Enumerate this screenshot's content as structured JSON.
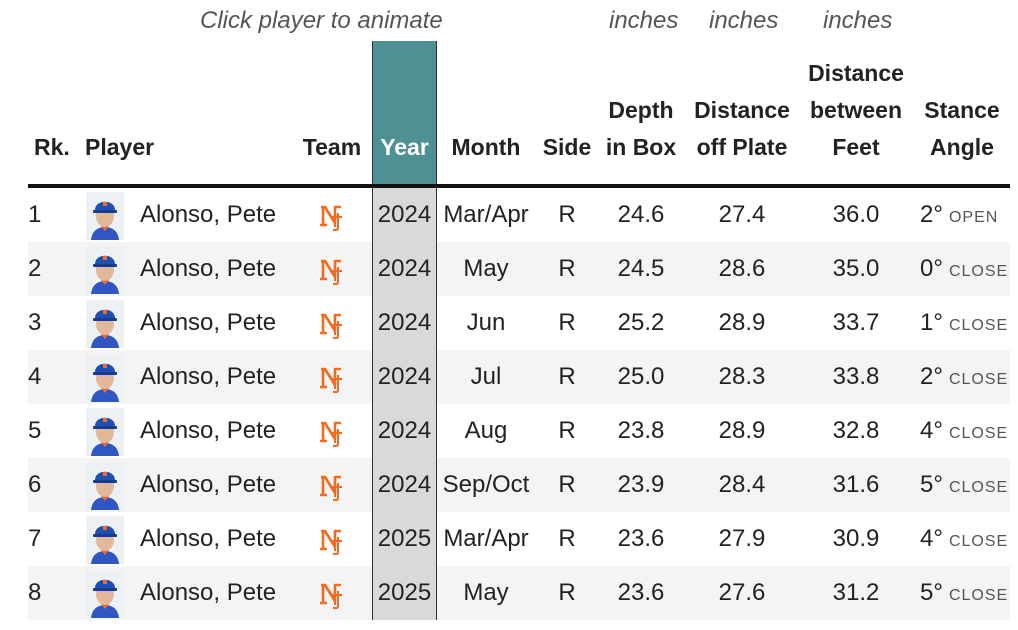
{
  "notes": {
    "click_hint": "Click player to animate",
    "depth_unit": "inches",
    "plate_unit": "inches",
    "feet_unit": "inches"
  },
  "headers": {
    "rank": "Rk.",
    "player": "Player",
    "team": "Team",
    "year": "Year",
    "month": "Month",
    "side": "Side",
    "depth": "Depth\nin Box",
    "plate": "Distance\noff Plate",
    "feet": "Distance\nbetween\nFeet",
    "angle": "Stance\nAngle"
  },
  "team_logo": "mets-ny-logo",
  "colors": {
    "year_header": "#4f9095",
    "year_column": "#d9d9d9",
    "mets_orange": "#f26b21",
    "mets_blue": "#1f4fb5"
  },
  "rows": [
    {
      "rank": "1",
      "player": "Alonso, Pete",
      "year": "2024",
      "month": "Mar/Apr",
      "side": "R",
      "depth": "24.6",
      "plate": "27.4",
      "feet": "36.0",
      "angle": "2°",
      "angle_dir": "OPEN"
    },
    {
      "rank": "2",
      "player": "Alonso, Pete",
      "year": "2024",
      "month": "May",
      "side": "R",
      "depth": "24.5",
      "plate": "28.6",
      "feet": "35.0",
      "angle": "0°",
      "angle_dir": "CLOSE"
    },
    {
      "rank": "3",
      "player": "Alonso, Pete",
      "year": "2024",
      "month": "Jun",
      "side": "R",
      "depth": "25.2",
      "plate": "28.9",
      "feet": "33.7",
      "angle": "1°",
      "angle_dir": "CLOSE"
    },
    {
      "rank": "4",
      "player": "Alonso, Pete",
      "year": "2024",
      "month": "Jul",
      "side": "R",
      "depth": "25.0",
      "plate": "28.3",
      "feet": "33.8",
      "angle": "2°",
      "angle_dir": "CLOSE"
    },
    {
      "rank": "5",
      "player": "Alonso, Pete",
      "year": "2024",
      "month": "Aug",
      "side": "R",
      "depth": "23.8",
      "plate": "28.9",
      "feet": "32.8",
      "angle": "4°",
      "angle_dir": "CLOSE"
    },
    {
      "rank": "6",
      "player": "Alonso, Pete",
      "year": "2024",
      "month": "Sep/Oct",
      "side": "R",
      "depth": "23.9",
      "plate": "28.4",
      "feet": "31.6",
      "angle": "5°",
      "angle_dir": "CLOSE"
    },
    {
      "rank": "7",
      "player": "Alonso, Pete",
      "year": "2025",
      "month": "Mar/Apr",
      "side": "R",
      "depth": "23.6",
      "plate": "27.9",
      "feet": "30.9",
      "angle": "4°",
      "angle_dir": "CLOSE"
    },
    {
      "rank": "8",
      "player": "Alonso, Pete",
      "year": "2025",
      "month": "May",
      "side": "R",
      "depth": "23.6",
      "plate": "27.6",
      "feet": "31.2",
      "angle": "5°",
      "angle_dir": "CLOSE"
    }
  ]
}
